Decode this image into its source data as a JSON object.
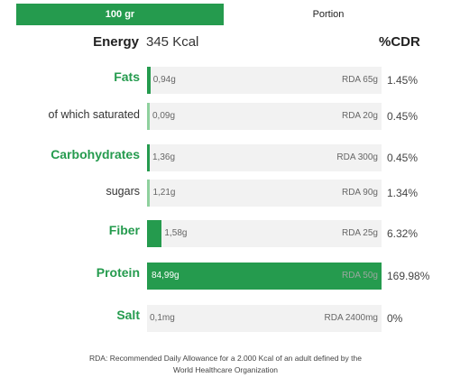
{
  "tabs": {
    "active": "100 gr",
    "inactive": "Portion"
  },
  "energy": {
    "label": "Energy",
    "value": "345 Kcal"
  },
  "cdr_header": "%CDR",
  "rows": [
    {
      "label": "Fats",
      "amount": "0,94g",
      "rda": "RDA 65g",
      "pct": "1.45%",
      "pct_value": 1.45,
      "type": "main"
    },
    {
      "label": "of which saturated",
      "amount": "0,09g",
      "rda": "RDA 20g",
      "pct": "0.45%",
      "pct_value": 0.45,
      "type": "sub"
    },
    {
      "label": "Carbohydrates",
      "amount": "1,36g",
      "rda": "RDA 300g",
      "pct": "0.45%",
      "pct_value": 0.45,
      "type": "main"
    },
    {
      "label": "sugars",
      "amount": "1,21g",
      "rda": "RDA 90g",
      "pct": "1.34%",
      "pct_value": 1.34,
      "type": "sub"
    },
    {
      "label": "Fiber",
      "amount": "1,58g",
      "rda": "RDA 25g",
      "pct": "6.32%",
      "pct_value": 6.32,
      "type": "main"
    },
    {
      "label": "Protein",
      "amount": "84,99g",
      "rda": "RDA 50g",
      "pct": "169.98%",
      "pct_value": 169.98,
      "type": "main"
    },
    {
      "label": "Salt",
      "amount": "0,1mg",
      "rda": "RDA 2400mg",
      "pct": "0%",
      "pct_value": 0,
      "type": "main"
    }
  ],
  "footnote_line1": "RDA: Recommended Daily Allowance for a 2.000 Kcal of an adult defined by the",
  "footnote_line2": "World Healthcare Organization"
}
